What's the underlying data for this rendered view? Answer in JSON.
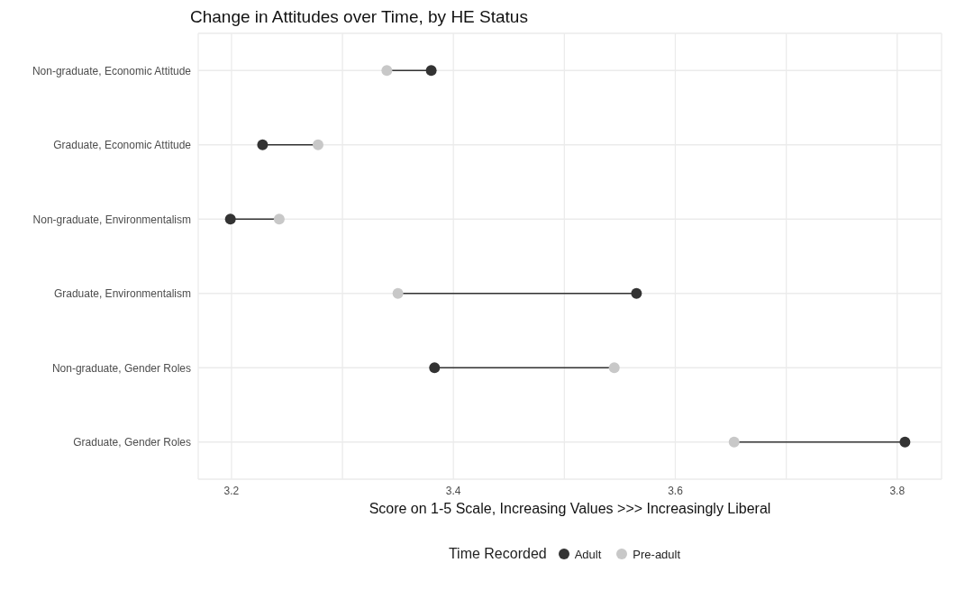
{
  "chart_data": {
    "type": "scatter",
    "orientation": "horizontal",
    "title": "Change in Attitudes over Time, by HE Status",
    "xlabel": "Score on 1-5 Scale, Increasing Values >>> Increasingly Liberal",
    "legend_title": "Time Recorded",
    "categories": [
      "Non-graduate, Economic Attitude",
      "Graduate, Economic Attitude",
      "Non-graduate, Environmentalism",
      "Graduate, Environmentalism",
      "Non-graduate, Gender Roles",
      "Graduate, Gender Roles"
    ],
    "series": [
      {
        "name": "Adult",
        "color": "#333333",
        "values": [
          3.38,
          3.228,
          3.199,
          3.565,
          3.383,
          3.807
        ]
      },
      {
        "name": "Pre-adult",
        "color": "#c8c8c8",
        "values": [
          3.34,
          3.278,
          3.243,
          3.35,
          3.545,
          3.653
        ]
      }
    ],
    "xlim": [
      3.17,
      3.84
    ],
    "xticks": [
      {
        "value": 3.2,
        "label": "3.2"
      },
      {
        "value": 3.3,
        "label": null
      },
      {
        "value": 3.4,
        "label": "3.4"
      },
      {
        "value": 3.5,
        "label": null
      },
      {
        "value": 3.6,
        "label": "3.6"
      },
      {
        "value": 3.7,
        "label": null
      },
      {
        "value": 3.8,
        "label": "3.8"
      }
    ],
    "grid": true,
    "legend": "bottom",
    "marker": "circle"
  }
}
